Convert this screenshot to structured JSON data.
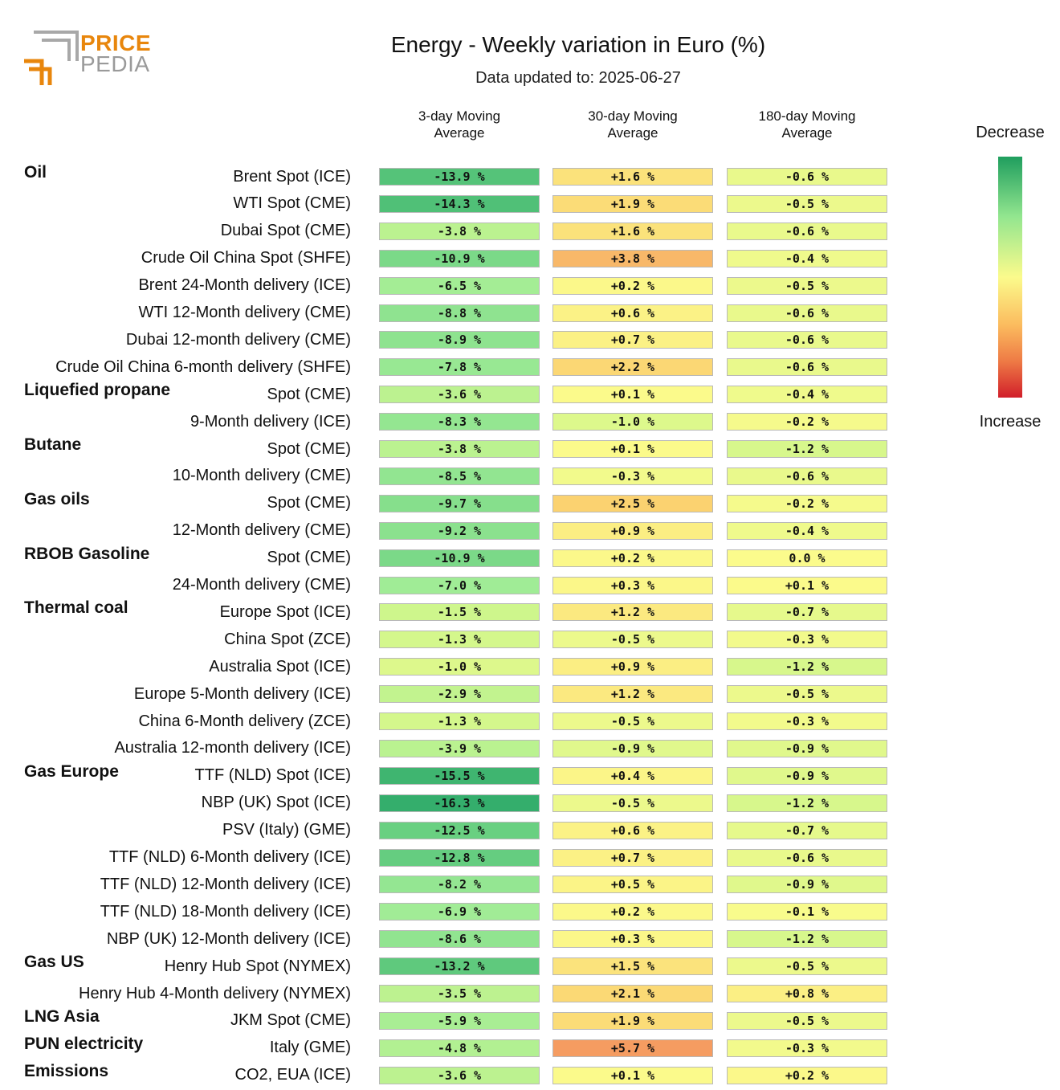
{
  "logo": {
    "line1": "PRICE",
    "line2": "PEDIA"
  },
  "title": "Energy - Weekly variation in Euro (%)",
  "subtitle": "Data updated to: 2025-06-27",
  "legend": {
    "top": "Decrease",
    "bottom": "Increase"
  },
  "chart_data": {
    "type": "table",
    "columns": [
      "3-day Moving\nAverage",
      "30-day Moving\nAverage",
      "180-day Moving\nAverage"
    ],
    "unit": "%",
    "groups": [
      {
        "name": "Oil",
        "rows": [
          {
            "label": "Brent Spot (ICE)",
            "values": [
              -13.9,
              1.6,
              -0.6
            ]
          },
          {
            "label": "WTI Spot (CME)",
            "values": [
              -14.3,
              1.9,
              -0.5
            ]
          },
          {
            "label": "Dubai Spot (CME)",
            "values": [
              -3.8,
              1.6,
              -0.6
            ]
          },
          {
            "label": "Crude Oil China Spot (SHFE)",
            "values": [
              -10.9,
              3.8,
              -0.4
            ]
          },
          {
            "label": "Brent 24-Month delivery (ICE)",
            "values": [
              -6.5,
              0.2,
              -0.5
            ]
          },
          {
            "label": "WTI 12-Month delivery (CME)",
            "values": [
              -8.8,
              0.6,
              -0.6
            ]
          },
          {
            "label": "Dubai 12-month delivery (CME)",
            "values": [
              -8.9,
              0.7,
              -0.6
            ]
          },
          {
            "label": "Crude Oil China 6-month delivery (SHFE)",
            "values": [
              -7.8,
              2.2,
              -0.6
            ]
          }
        ]
      },
      {
        "name": "Liquefied propane",
        "rows": [
          {
            "label": "Spot (CME)",
            "values": [
              -3.6,
              0.1,
              -0.4
            ]
          },
          {
            "label": "9-Month delivery (ICE)",
            "values": [
              -8.3,
              -1.0,
              -0.2
            ]
          }
        ]
      },
      {
        "name": "Butane",
        "rows": [
          {
            "label": "Spot (CME)",
            "values": [
              -3.8,
              0.1,
              -1.2
            ]
          },
          {
            "label": "10-Month delivery (CME)",
            "values": [
              -8.5,
              -0.3,
              -0.6
            ]
          }
        ]
      },
      {
        "name": "Gas oils",
        "rows": [
          {
            "label": "Spot (CME)",
            "values": [
              -9.7,
              2.5,
              -0.2
            ]
          },
          {
            "label": "12-Month delivery (CME)",
            "values": [
              -9.2,
              0.9,
              -0.4
            ]
          }
        ]
      },
      {
        "name": "RBOB Gasoline",
        "rows": [
          {
            "label": "Spot (CME)",
            "values": [
              -10.9,
              0.2,
              0.0
            ]
          },
          {
            "label": "24-Month delivery (CME)",
            "values": [
              -7.0,
              0.3,
              0.1
            ]
          }
        ]
      },
      {
        "name": "Thermal coal",
        "rows": [
          {
            "label": "Europe Spot (ICE)",
            "values": [
              -1.5,
              1.2,
              -0.7
            ]
          },
          {
            "label": "China Spot (ZCE)",
            "values": [
              -1.3,
              -0.5,
              -0.3
            ]
          },
          {
            "label": "Australia Spot (ICE)",
            "values": [
              -1.0,
              0.9,
              -1.2
            ]
          },
          {
            "label": "Europe 5-Month delivery (ICE)",
            "values": [
              -2.9,
              1.2,
              -0.5
            ]
          },
          {
            "label": "China 6-Month delivery (ZCE)",
            "values": [
              -1.3,
              -0.5,
              -0.3
            ]
          },
          {
            "label": "Australia 12-month delivery (ICE)",
            "values": [
              -3.9,
              -0.9,
              -0.9
            ]
          }
        ]
      },
      {
        "name": "Gas Europe",
        "rows": [
          {
            "label": "TTF (NLD) Spot (ICE)",
            "values": [
              -15.5,
              0.4,
              -0.9
            ]
          },
          {
            "label": "NBP (UK) Spot (ICE)",
            "values": [
              -16.3,
              -0.5,
              -1.2
            ]
          },
          {
            "label": "PSV (Italy) (GME)",
            "values": [
              -12.5,
              0.6,
              -0.7
            ]
          },
          {
            "label": "TTF (NLD) 6-Month delivery (ICE)",
            "values": [
              -12.8,
              0.7,
              -0.6
            ]
          },
          {
            "label": "TTF (NLD) 12-Month delivery (ICE)",
            "values": [
              -8.2,
              0.5,
              -0.9
            ]
          },
          {
            "label": "TTF (NLD) 18-Month delivery (ICE)",
            "values": [
              -6.9,
              0.2,
              -0.1
            ]
          },
          {
            "label": "NBP (UK) 12-Month delivery (ICE)",
            "values": [
              -8.6,
              0.3,
              -1.2
            ]
          }
        ]
      },
      {
        "name": "Gas US",
        "rows": [
          {
            "label": "Henry Hub Spot (NYMEX)",
            "values": [
              -13.2,
              1.5,
              -0.5
            ]
          },
          {
            "label": "Henry Hub 4-Month delivery (NYMEX)",
            "values": [
              -3.5,
              2.1,
              0.8
            ]
          }
        ]
      },
      {
        "name": "LNG Asia",
        "rows": [
          {
            "label": "JKM Spot (CME)",
            "values": [
              -5.9,
              1.9,
              -0.5
            ]
          }
        ]
      },
      {
        "name": "PUN electricity",
        "rows": [
          {
            "label": "Italy (GME)",
            "values": [
              -4.8,
              5.7,
              -0.3
            ]
          }
        ]
      },
      {
        "name": "Emissions",
        "rows": [
          {
            "label": "CO2, EUA (ICE)",
            "values": [
              -3.6,
              0.1,
              0.2
            ]
          }
        ]
      }
    ]
  }
}
